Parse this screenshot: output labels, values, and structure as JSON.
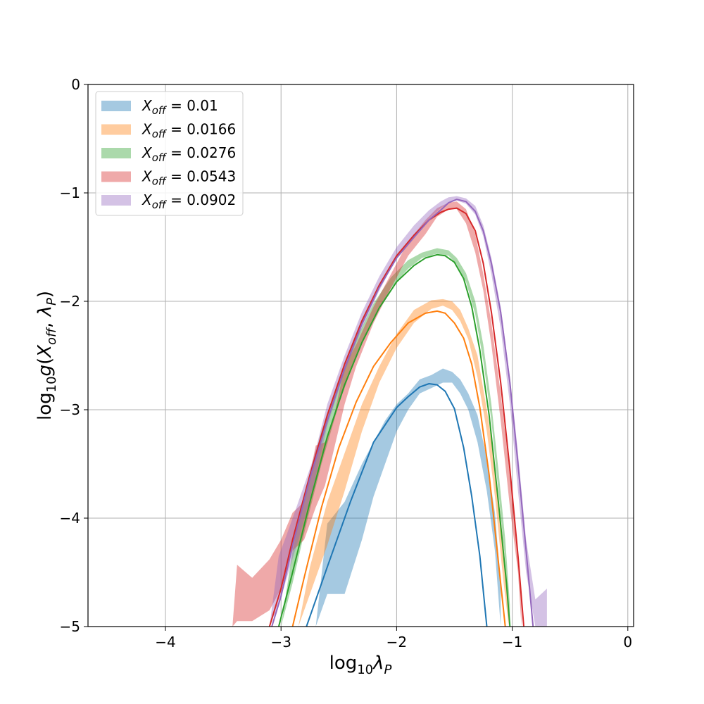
{
  "chart_data": {
    "type": "line",
    "title": "",
    "xlabel": "log₁₀λ_P",
    "ylabel": "log₁₀g(X_off, λ_P)",
    "xlim": [
      -4.67,
      0.05
    ],
    "ylim": [
      -5,
      0
    ],
    "x_ticks": [
      -4,
      -3,
      -2,
      -1,
      0
    ],
    "x_tick_labels": [
      "−4",
      "−3",
      "−2",
      "−1",
      "0"
    ],
    "y_ticks": [
      0,
      -1,
      -2,
      -3,
      -4,
      -5
    ],
    "y_tick_labels": [
      "0",
      "−1",
      "−2",
      "−3",
      "−4",
      "−5"
    ],
    "grid": true,
    "legend_position": "top-left",
    "series": [
      {
        "name": "X_off = 0.01",
        "legend_prefix": "X",
        "legend_sub": "off",
        "legend_value": " = 0.01",
        "color": "#1f77b4",
        "line": [
          [
            -2.78,
            -5.0
          ],
          [
            -2.6,
            -4.45
          ],
          [
            -2.4,
            -3.85
          ],
          [
            -2.2,
            -3.3
          ],
          [
            -2.0,
            -2.98
          ],
          [
            -1.9,
            -2.88
          ],
          [
            -1.8,
            -2.79
          ],
          [
            -1.72,
            -2.76
          ],
          [
            -1.65,
            -2.77
          ],
          [
            -1.58,
            -2.83
          ],
          [
            -1.5,
            -2.99
          ],
          [
            -1.42,
            -3.35
          ],
          [
            -1.35,
            -3.8
          ],
          [
            -1.28,
            -4.35
          ],
          [
            -1.22,
            -5.0
          ]
        ],
        "band": [
          [
            -2.7,
            -5.0,
            -5.0
          ],
          [
            -2.6,
            -4.7,
            -4.05
          ],
          [
            -2.45,
            -4.7,
            -3.85
          ],
          [
            -2.3,
            -4.2,
            -3.5
          ],
          [
            -2.2,
            -3.8,
            -3.3
          ],
          [
            -2.1,
            -3.5,
            -3.1
          ],
          [
            -2.0,
            -3.2,
            -2.95
          ],
          [
            -1.9,
            -3.0,
            -2.85
          ],
          [
            -1.8,
            -2.85,
            -2.72
          ],
          [
            -1.7,
            -2.8,
            -2.68
          ],
          [
            -1.6,
            -2.75,
            -2.62
          ],
          [
            -1.52,
            -2.75,
            -2.65
          ],
          [
            -1.45,
            -2.85,
            -2.72
          ],
          [
            -1.38,
            -3.0,
            -2.85
          ],
          [
            -1.3,
            -3.3,
            -3.05
          ],
          [
            -1.22,
            -3.75,
            -3.45
          ],
          [
            -1.15,
            -4.3,
            -3.95
          ],
          [
            -1.1,
            -5.0,
            -4.6
          ]
        ]
      },
      {
        "name": "X_off = 0.0166",
        "legend_prefix": "X",
        "legend_sub": "off",
        "legend_value": " = 0.0166",
        "color": "#ff7f0e",
        "line": [
          [
            -2.9,
            -5.0
          ],
          [
            -2.8,
            -4.55
          ],
          [
            -2.65,
            -3.9
          ],
          [
            -2.5,
            -3.35
          ],
          [
            -2.35,
            -2.93
          ],
          [
            -2.2,
            -2.6
          ],
          [
            -2.05,
            -2.38
          ],
          [
            -1.9,
            -2.2
          ],
          [
            -1.75,
            -2.11
          ],
          [
            -1.65,
            -2.09
          ],
          [
            -1.58,
            -2.11
          ],
          [
            -1.5,
            -2.2
          ],
          [
            -1.42,
            -2.34
          ],
          [
            -1.35,
            -2.58
          ],
          [
            -1.28,
            -2.98
          ],
          [
            -1.2,
            -3.6
          ],
          [
            -1.12,
            -4.4
          ],
          [
            -1.06,
            -5.0
          ]
        ],
        "band": [
          [
            -2.85,
            -5.0,
            -5.0
          ],
          [
            -2.75,
            -4.7,
            -4.45
          ],
          [
            -2.6,
            -4.25,
            -3.85
          ],
          [
            -2.45,
            -3.75,
            -3.4
          ],
          [
            -2.3,
            -3.2,
            -2.95
          ],
          [
            -2.15,
            -2.75,
            -2.6
          ],
          [
            -2.0,
            -2.43,
            -2.3
          ],
          [
            -1.85,
            -2.2,
            -2.08
          ],
          [
            -1.7,
            -2.07,
            -1.99
          ],
          [
            -1.6,
            -2.04,
            -1.98
          ],
          [
            -1.52,
            -2.08,
            -2.0
          ],
          [
            -1.45,
            -2.18,
            -2.08
          ],
          [
            -1.38,
            -2.35,
            -2.25
          ],
          [
            -1.3,
            -2.7,
            -2.5
          ],
          [
            -1.22,
            -3.2,
            -3.0
          ],
          [
            -1.15,
            -3.8,
            -3.5
          ],
          [
            -1.08,
            -4.55,
            -4.2
          ],
          [
            -1.03,
            -5.0,
            -4.8
          ]
        ]
      },
      {
        "name": "X_off = 0.0276",
        "legend_prefix": "X",
        "legend_sub": "off",
        "legend_value": " = 0.0276",
        "color": "#2ca02c",
        "line": [
          [
            -3.02,
            -5.0
          ],
          [
            -2.9,
            -4.5
          ],
          [
            -2.75,
            -3.85
          ],
          [
            -2.6,
            -3.25
          ],
          [
            -2.45,
            -2.77
          ],
          [
            -2.3,
            -2.38
          ],
          [
            -2.15,
            -2.06
          ],
          [
            -2.0,
            -1.82
          ],
          [
            -1.85,
            -1.67
          ],
          [
            -1.75,
            -1.6
          ],
          [
            -1.65,
            -1.57
          ],
          [
            -1.58,
            -1.58
          ],
          [
            -1.5,
            -1.64
          ],
          [
            -1.42,
            -1.79
          ],
          [
            -1.35,
            -2.05
          ],
          [
            -1.28,
            -2.45
          ],
          [
            -1.2,
            -3.05
          ],
          [
            -1.12,
            -3.85
          ],
          [
            -1.05,
            -4.6
          ],
          [
            -1.02,
            -5.0
          ]
        ],
        "band": [
          [
            -3.0,
            -5.0,
            -5.0
          ],
          [
            -2.9,
            -4.6,
            -4.3
          ],
          [
            -2.78,
            -4.05,
            -3.7
          ],
          [
            -2.65,
            -3.5,
            -3.2
          ],
          [
            -2.5,
            -2.95,
            -2.75
          ],
          [
            -2.35,
            -2.5,
            -2.35
          ],
          [
            -2.2,
            -2.15,
            -2.02
          ],
          [
            -2.05,
            -1.88,
            -1.78
          ],
          [
            -1.9,
            -1.7,
            -1.62
          ],
          [
            -1.78,
            -1.6,
            -1.55
          ],
          [
            -1.65,
            -1.56,
            -1.51
          ],
          [
            -1.55,
            -1.58,
            -1.53
          ],
          [
            -1.48,
            -1.66,
            -1.6
          ],
          [
            -1.4,
            -1.82,
            -1.74
          ],
          [
            -1.32,
            -2.12,
            -2.0
          ],
          [
            -1.25,
            -2.55,
            -2.4
          ],
          [
            -1.18,
            -3.1,
            -2.95
          ],
          [
            -1.12,
            -3.75,
            -3.55
          ],
          [
            -1.06,
            -4.4,
            -4.2
          ],
          [
            -1.02,
            -5.0,
            -4.8
          ]
        ]
      },
      {
        "name": "X_off = 0.0543",
        "legend_prefix": "X",
        "legend_sub": "off",
        "legend_value": " = 0.0543",
        "color": "#d62728",
        "line": [
          [
            -3.1,
            -5.0
          ],
          [
            -3.0,
            -4.65
          ],
          [
            -2.9,
            -4.2
          ],
          [
            -2.75,
            -3.6
          ],
          [
            -2.6,
            -3.05
          ],
          [
            -2.45,
            -2.58
          ],
          [
            -2.3,
            -2.18
          ],
          [
            -2.15,
            -1.85
          ],
          [
            -2.0,
            -1.58
          ],
          [
            -1.85,
            -1.39
          ],
          [
            -1.72,
            -1.25
          ],
          [
            -1.62,
            -1.18
          ],
          [
            -1.55,
            -1.15
          ],
          [
            -1.48,
            -1.14
          ],
          [
            -1.4,
            -1.19
          ],
          [
            -1.32,
            -1.35
          ],
          [
            -1.25,
            -1.65
          ],
          [
            -1.18,
            -2.1
          ],
          [
            -1.1,
            -2.75
          ],
          [
            -1.02,
            -3.55
          ],
          [
            -0.95,
            -4.35
          ],
          [
            -0.9,
            -5.0
          ]
        ],
        "band": [
          [
            -3.42,
            -5.0,
            -5.0
          ],
          [
            -3.38,
            -4.95,
            -4.43
          ],
          [
            -3.25,
            -4.95,
            -4.55
          ],
          [
            -3.1,
            -4.85,
            -4.38
          ],
          [
            -3.0,
            -4.65,
            -4.2
          ],
          [
            -2.9,
            -4.3,
            -3.95
          ],
          [
            -2.8,
            -4.2,
            -3.85
          ],
          [
            -2.7,
            -3.9,
            -3.33
          ],
          [
            -2.62,
            -3.7,
            -3.3
          ],
          [
            -2.55,
            -3.4,
            -3.1
          ],
          [
            -2.45,
            -2.95,
            -2.6
          ],
          [
            -2.35,
            -2.6,
            -2.4
          ],
          [
            -2.2,
            -2.2,
            -2.05
          ],
          [
            -2.05,
            -1.88,
            -1.75
          ],
          [
            -1.9,
            -1.58,
            -1.45
          ],
          [
            -1.75,
            -1.38,
            -1.25
          ],
          [
            -1.65,
            -1.22,
            -1.14
          ],
          [
            -1.55,
            -1.15,
            -1.09
          ],
          [
            -1.48,
            -1.15,
            -1.08
          ],
          [
            -1.4,
            -1.28,
            -1.15
          ],
          [
            -1.32,
            -1.55,
            -1.38
          ],
          [
            -1.25,
            -1.9,
            -1.75
          ],
          [
            -1.18,
            -2.4,
            -2.2
          ],
          [
            -1.1,
            -3.1,
            -2.85
          ],
          [
            -1.02,
            -3.9,
            -3.6
          ],
          [
            -0.95,
            -4.5,
            -4.35
          ],
          [
            -0.92,
            -5.0,
            -4.8
          ]
        ]
      },
      {
        "name": "X_off = 0.0902",
        "legend_prefix": "X",
        "legend_sub": "off",
        "legend_value": " = 0.0902",
        "color": "#9467bd",
        "line": [
          [
            -3.08,
            -5.0
          ],
          [
            -3.0,
            -4.72
          ],
          [
            -2.9,
            -4.25
          ],
          [
            -2.75,
            -3.63
          ],
          [
            -2.6,
            -3.1
          ],
          [
            -2.45,
            -2.62
          ],
          [
            -2.3,
            -2.21
          ],
          [
            -2.15,
            -1.87
          ],
          [
            -2.0,
            -1.6
          ],
          [
            -1.85,
            -1.41
          ],
          [
            -1.72,
            -1.25
          ],
          [
            -1.62,
            -1.16
          ],
          [
            -1.55,
            -1.09
          ],
          [
            -1.48,
            -1.06
          ],
          [
            -1.4,
            -1.08
          ],
          [
            -1.32,
            -1.17
          ],
          [
            -1.25,
            -1.35
          ],
          [
            -1.18,
            -1.65
          ],
          [
            -1.1,
            -2.1
          ],
          [
            -1.02,
            -2.75
          ],
          [
            -0.95,
            -3.5
          ],
          [
            -0.88,
            -4.3
          ],
          [
            -0.82,
            -5.0
          ]
        ],
        "band": [
          [
            -3.1,
            -5.0,
            -5.0
          ],
          [
            -3.02,
            -4.8,
            -4.35
          ],
          [
            -2.95,
            -4.55,
            -4.15
          ],
          [
            -2.85,
            -4.2,
            -3.85
          ],
          [
            -2.72,
            -3.7,
            -3.45
          ],
          [
            -2.6,
            -3.15,
            -2.95
          ],
          [
            -2.45,
            -2.65,
            -2.5
          ],
          [
            -2.3,
            -2.25,
            -2.1
          ],
          [
            -2.15,
            -1.9,
            -1.77
          ],
          [
            -2.0,
            -1.6,
            -1.5
          ],
          [
            -1.85,
            -1.4,
            -1.3
          ],
          [
            -1.72,
            -1.24,
            -1.16
          ],
          [
            -1.62,
            -1.14,
            -1.08
          ],
          [
            -1.55,
            -1.09,
            -1.04
          ],
          [
            -1.48,
            -1.07,
            -1.03
          ],
          [
            -1.4,
            -1.1,
            -1.05
          ],
          [
            -1.32,
            -1.2,
            -1.12
          ],
          [
            -1.25,
            -1.4,
            -1.3
          ],
          [
            -1.18,
            -1.75,
            -1.6
          ],
          [
            -1.1,
            -2.25,
            -2.05
          ],
          [
            -1.02,
            -2.95,
            -2.7
          ],
          [
            -0.95,
            -3.75,
            -3.4
          ],
          [
            -0.88,
            -4.5,
            -4.2
          ],
          [
            -0.8,
            -5.0,
            -4.75
          ],
          [
            -0.7,
            -5.0,
            -4.65
          ]
        ]
      }
    ]
  }
}
